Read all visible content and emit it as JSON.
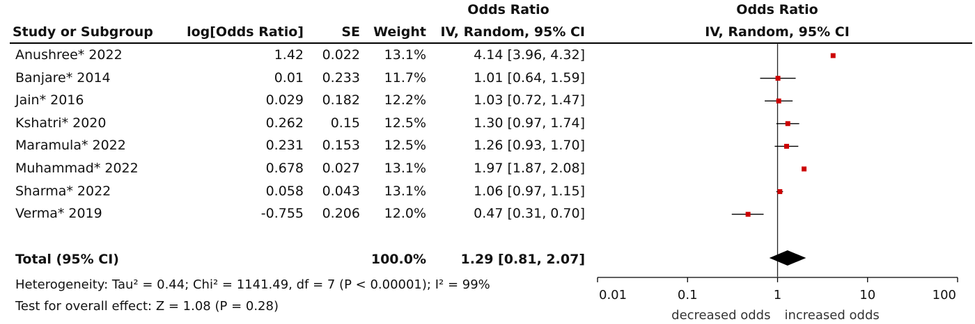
{
  "table": {
    "header_group_left": "Odds Ratio",
    "header_group_right": "Odds Ratio",
    "col_study": "Study or Subgroup",
    "col_log": "log[Odds Ratio]",
    "col_se": "SE",
    "col_weight": "Weight",
    "col_ci": "IV, Random, 95% CI",
    "col_plot": "IV, Random, 95% CI",
    "rows": [
      {
        "study": "Anushree* 2022",
        "log": "1.42",
        "se": "0.022",
        "weight": "13.1%",
        "ci": "4.14 [3.96, 4.32]"
      },
      {
        "study": "Banjare* 2014",
        "log": "0.01",
        "se": "0.233",
        "weight": "11.7%",
        "ci": "1.01 [0.64, 1.59]"
      },
      {
        "study": "Jain* 2016",
        "log": "0.029",
        "se": "0.182",
        "weight": "12.2%",
        "ci": "1.03 [0.72, 1.47]"
      },
      {
        "study": "Kshatri* 2020",
        "log": "0.262",
        "se": "0.15",
        "weight": "12.5%",
        "ci": "1.30 [0.97, 1.74]"
      },
      {
        "study": "Maramula* 2022",
        "log": "0.231",
        "se": "0.153",
        "weight": "12.5%",
        "ci": "1.26 [0.93, 1.70]"
      },
      {
        "study": "Muhammad* 2022",
        "log": "0.678",
        "se": "0.027",
        "weight": "13.1%",
        "ci": "1.97 [1.87, 2.08]"
      },
      {
        "study": "Sharma* 2022",
        "log": "0.058",
        "se": "0.043",
        "weight": "13.1%",
        "ci": "1.06 [0.97, 1.15]"
      },
      {
        "study": "Verma* 2019",
        "log": "-0.755",
        "se": "0.206",
        "weight": "12.0%",
        "ci": "0.47 [0.31, 0.70]"
      }
    ],
    "total_label": "Total (95% CI)",
    "total_weight": "100.0%",
    "total_ci": "1.29 [0.81, 2.07]",
    "heterogeneity": "Heterogeneity: Tau² = 0.44; Chi² = 1141.49, df = 7 (P < 0.00001); I² = 99%",
    "overall_effect": "Test for overall effect: Z = 1.08 (P = 0.28)"
  },
  "chart_data": {
    "type": "forest",
    "x_scale": "log",
    "xlim": [
      0.01,
      100
    ],
    "reference_line": 1,
    "x_ticks": [
      "0.01",
      "0.1",
      "1",
      "10",
      "100"
    ],
    "x_tick_values": [
      0.01,
      0.1,
      1,
      10,
      100
    ],
    "label_left": "decreased odds",
    "label_right": "increased odds",
    "marker_color": "#cc0000",
    "diamond_color": "#000000",
    "studies": [
      {
        "name": "Anushree* 2022",
        "or": 4.14,
        "lo": 3.96,
        "hi": 4.32
      },
      {
        "name": "Banjare* 2014",
        "or": 1.01,
        "lo": 0.64,
        "hi": 1.59
      },
      {
        "name": "Jain* 2016",
        "or": 1.03,
        "lo": 0.72,
        "hi": 1.47
      },
      {
        "name": "Kshatri* 2020",
        "or": 1.3,
        "lo": 0.97,
        "hi": 1.74
      },
      {
        "name": "Maramula* 2022",
        "or": 1.26,
        "lo": 0.93,
        "hi": 1.7
      },
      {
        "name": "Muhammad* 2022",
        "or": 1.97,
        "lo": 1.87,
        "hi": 2.08
      },
      {
        "name": "Sharma* 2022",
        "or": 1.06,
        "lo": 0.97,
        "hi": 1.15
      },
      {
        "name": "Verma* 2019",
        "or": 0.47,
        "lo": 0.31,
        "hi": 0.7
      }
    ],
    "total": {
      "or": 1.29,
      "lo": 0.81,
      "hi": 2.07
    }
  }
}
